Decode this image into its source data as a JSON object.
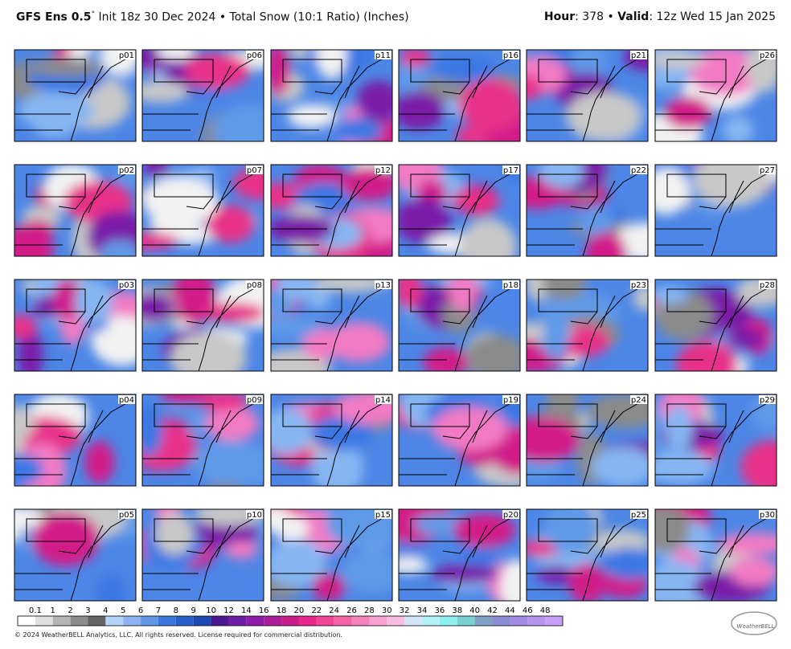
{
  "header": {
    "model": "GFS Ens 0.5",
    "degree": "°",
    "description": "Init 18z 30 Dec 2024 • Total Snow (10:1 Ratio) (Inches)",
    "hour_label": "Hour",
    "hour_value": ": 378 • ",
    "valid_label": "Valid",
    "valid_value": ": 12z Wed 15 Jan 2025"
  },
  "panels": [
    "p01",
    "p06",
    "p11",
    "p16",
    "p21",
    "p26",
    "p02",
    "p07",
    "p12",
    "p17",
    "p22",
    "p27",
    "p03",
    "p08",
    "p13",
    "p18",
    "p23",
    "p28",
    "p04",
    "p09",
    "p14",
    "p19",
    "p24",
    "p29",
    "p05",
    "p10",
    "p15",
    "p20",
    "p25",
    "p30"
  ],
  "colorbar": {
    "ticks": [
      "0.1",
      "1",
      "2",
      "3",
      "4",
      "5",
      "6",
      "7",
      "8",
      "9",
      "10",
      "12",
      "14",
      "16",
      "18",
      "20",
      "22",
      "24",
      "26",
      "28",
      "30",
      "32",
      "34",
      "36",
      "38",
      "40",
      "42",
      "44",
      "46",
      "48"
    ]
  },
  "footer": {
    "copyright": "© 2024 WeatherBELL Analytics, LLC. All rights reserved. License required for commercial distribution.",
    "logo": "WeatherBELL"
  }
}
